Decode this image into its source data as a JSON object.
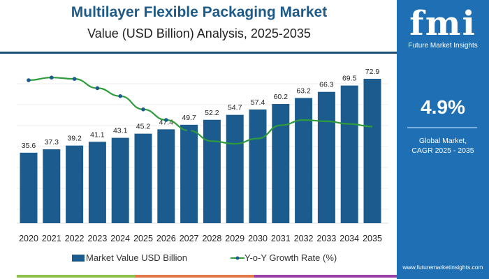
{
  "header": {
    "title": "Multilayer Flexible Packaging Market",
    "subtitle": "Value (USD Billion) Analysis, 2025-2035"
  },
  "sidebar": {
    "logo_text": "fmi",
    "logo_caption": "Future Market Insights",
    "cagr_value": "4.9%",
    "cagr_label_1": "Global Market,",
    "cagr_label_2": "CAGR 2025 - 2035",
    "url": "www.futuremarketinsights.com"
  },
  "colors": {
    "bar": "#1b5b8e",
    "line": "#2e9c3a",
    "marker": "#1b5b8e",
    "sidebar": "#1e6fb3"
  },
  "chart_data": {
    "type": "bar+line",
    "categories": [
      "2020",
      "2021",
      "2022",
      "2023",
      "2024",
      "2025",
      "2026",
      "2027",
      "2028",
      "2029",
      "2030",
      "2031",
      "2032",
      "2033",
      "2034",
      "2035"
    ],
    "series": [
      {
        "name": "Market Value USD Billion",
        "type": "bar",
        "values": [
          35.6,
          37.3,
          39.2,
          41.1,
          43.1,
          45.2,
          47.4,
          49.7,
          52.2,
          54.7,
          57.4,
          60.2,
          63.2,
          66.3,
          69.5,
          72.9
        ]
      },
      {
        "name": "Y-o-Y Growth Rate (%)",
        "type": "line",
        "values": [
          5.6,
          5.7,
          5.65,
          5.3,
          5.0,
          4.5,
          4.1,
          3.7,
          3.3,
          3.2,
          3.4,
          3.9,
          4.1,
          4.05,
          3.95,
          3.85
        ]
      }
    ],
    "data_labels": [
      "35.6",
      "37.3",
      "39.2",
      "41.1",
      "43.1",
      "45.2",
      "47.4",
      "49.7",
      "52.2",
      "54.7",
      "57.4",
      "60.2",
      "63.2",
      "66.3",
      "69.5",
      "72.9"
    ],
    "grid": true,
    "legend": "bottom"
  }
}
